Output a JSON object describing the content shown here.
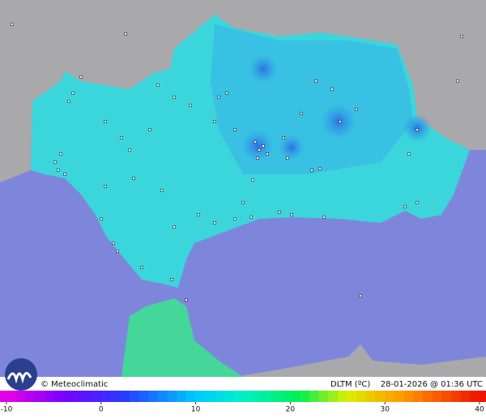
{
  "header": {
    "credit": "© Meteoclimatic",
    "variable": "DLTM (ºC)",
    "timestamp": "28-01-2026 @ 01:36 UTC"
  },
  "colorbar": {
    "lim": [
      -10,
      40
    ],
    "ticks": [
      -10,
      0,
      10,
      20,
      30,
      40
    ]
  }
}
